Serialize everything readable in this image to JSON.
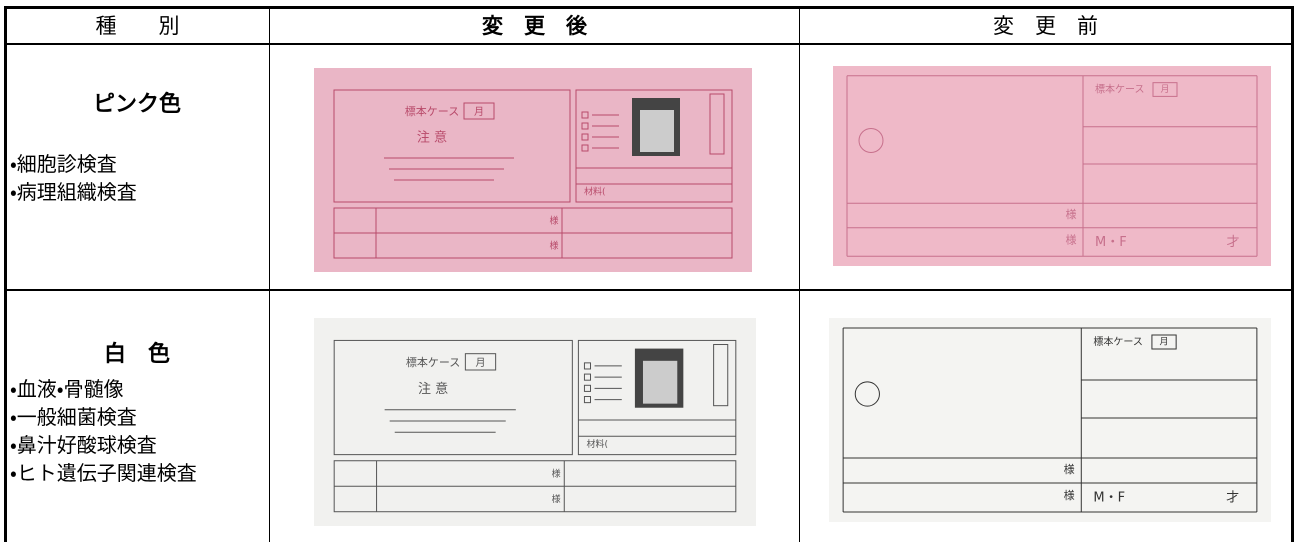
{
  "table": {
    "header": [
      "種　　別",
      "変　更　後",
      "変　更　前"
    ],
    "rows": [
      {
        "type": "ピンク色",
        "items": [
          "・細胞診検査",
          "・病理組織検査"
        ]
      },
      {
        "type": "白　色",
        "items": [
          "・血液・骨髄像",
          "・一般細菌検査",
          "・鼻汁好酸球検査",
          "・ヒト遺伝子関連検査"
        ]
      }
    ]
  },
  "cards": {
    "after": {
      "case": "標本ケース",
      "month": "月",
      "notice": "注 意",
      "material": "材料(",
      "honorific": "様"
    },
    "before": {
      "case": "標本ケース",
      "month": "月",
      "honorific": "様",
      "sex": "M・F",
      "age": "才"
    }
  }
}
